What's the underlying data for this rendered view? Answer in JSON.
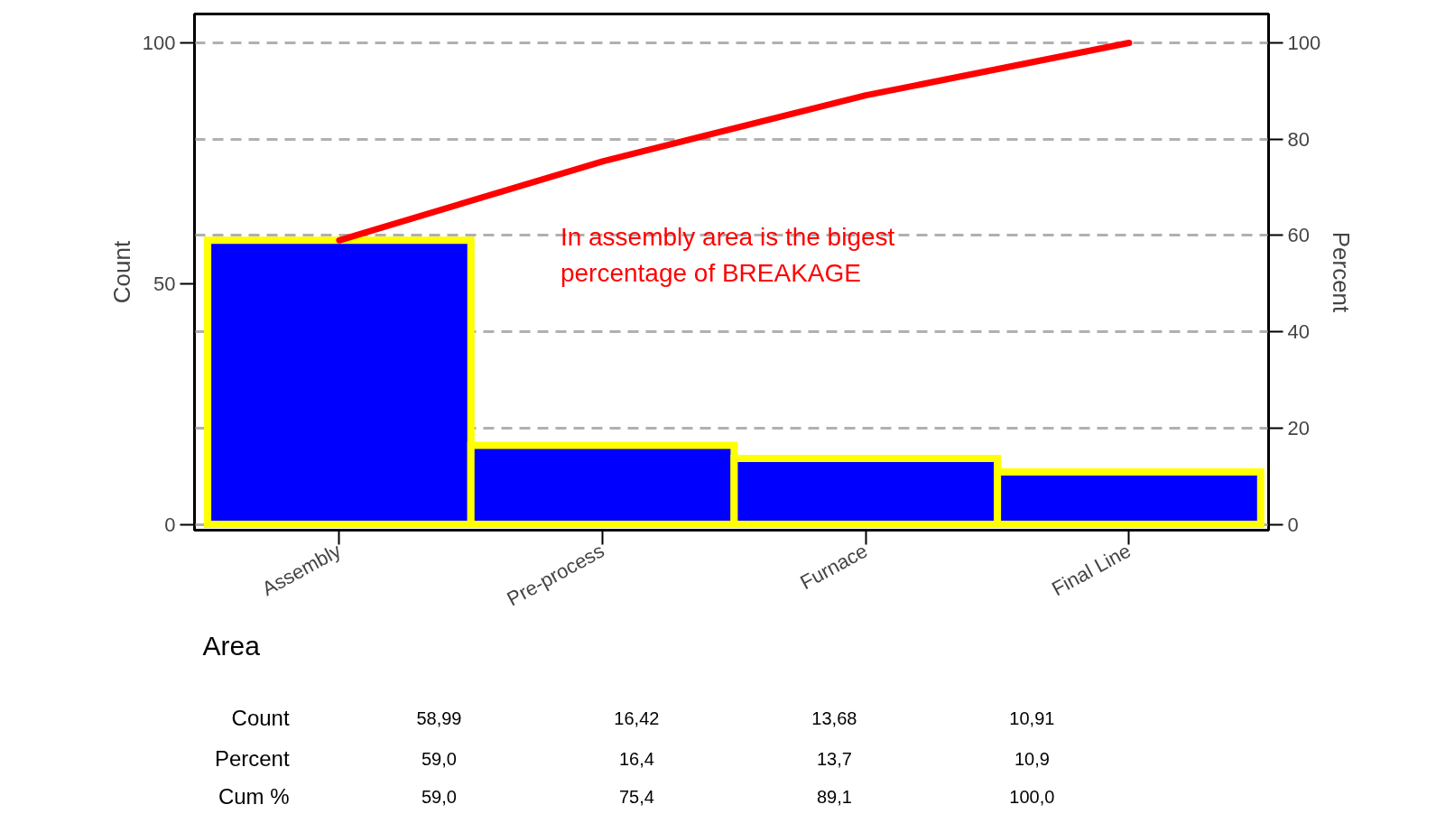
{
  "chart_data": {
    "type": "bar",
    "xlabel": "Area",
    "ylabel": "Count",
    "y2label": "Percent",
    "categories": [
      "Assembly",
      "Pre-process",
      "Furnace",
      "Final Line"
    ],
    "series": [
      {
        "color": "#0000ff",
        "values": [
          58.99,
          16.42,
          13.68,
          10.91
        ],
        "value_labels": [
          "58,99",
          "16,42",
          "13,68",
          "10,91"
        ]
      },
      {
        "type": "line",
        "color": "#ff0000",
        "values": [
          59.0,
          75.4,
          89.1,
          100.0
        ],
        "value_labels": [
          "59,0",
          "75,4",
          "89,1",
          "100,0"
        ]
      }
    ],
    "ylim": [
      -1.2,
      106
    ],
    "yticks": [
      0,
      50,
      100
    ],
    "y2lim": [
      -1.2,
      106
    ],
    "y2ticks": [
      0,
      20,
      40,
      60,
      80,
      100
    ],
    "grid": "y2",
    "annotations": [
      "In assembly  area is the bigest\npercentage of BREAKAGE",
      "Count",
      "Percent",
      "Cum %",
      "59,0",
      "16,4",
      "13,7",
      "10,9"
    ]
  }
}
